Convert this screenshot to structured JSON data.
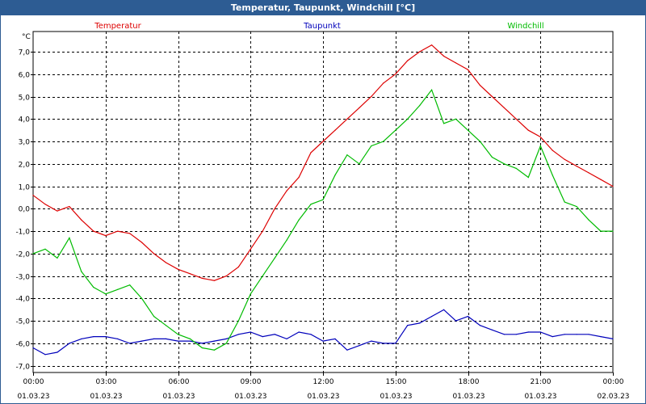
{
  "window": {
    "title": "Temperatur, Taupunkt, Windchill [°C]"
  },
  "chart_data": {
    "type": "line",
    "title": "Temperatur, Taupunkt, Windchill [°C]",
    "ylabel": "°C",
    "xlabel": "",
    "ylim": [
      -7.3,
      7.9
    ],
    "xlim_hours": [
      0,
      24
    ],
    "grid": true,
    "legend": "top",
    "y_ticks": [
      "7,0",
      "6,0",
      "5,0",
      "4,0",
      "3,0",
      "2,0",
      "1,0",
      "0,0",
      "-1,0",
      "-2,0",
      "-3,0",
      "-4,0",
      "-5,0",
      "-6,0",
      "-7,0"
    ],
    "y_tick_values": [
      7,
      6,
      5,
      4,
      3,
      2,
      1,
      0,
      -1,
      -2,
      -3,
      -4,
      -5,
      -6,
      -7
    ],
    "x_ticks": [
      {
        "hour": 0,
        "time": "00:00",
        "date": "01.03.23"
      },
      {
        "hour": 3,
        "time": "03:00",
        "date": "01.03.23"
      },
      {
        "hour": 6,
        "time": "06:00",
        "date": "01.03.23"
      },
      {
        "hour": 9,
        "time": "09:00",
        "date": "01.03.23"
      },
      {
        "hour": 12,
        "time": "12:00",
        "date": "01.03.23"
      },
      {
        "hour": 15,
        "time": "15:00",
        "date": "01.03.23"
      },
      {
        "hour": 18,
        "time": "18:00",
        "date": "01.03.23"
      },
      {
        "hour": 21,
        "time": "21:00",
        "date": "01.03.23"
      },
      {
        "hour": 24,
        "time": "00:00",
        "date": "02.03.23"
      }
    ],
    "series": [
      {
        "name": "Temperatur",
        "color": "#dd0000",
        "x": [
          0,
          0.5,
          1,
          1.5,
          2,
          2.5,
          3,
          3.5,
          4,
          4.5,
          5,
          5.5,
          6,
          6.5,
          7,
          7.5,
          8,
          8.5,
          9,
          9.5,
          10,
          10.5,
          11,
          11.5,
          12,
          12.5,
          13,
          13.5,
          14,
          14.5,
          15,
          15.5,
          16,
          16.5,
          17,
          17.5,
          18,
          18.5,
          19,
          19.5,
          20,
          20.5,
          21,
          21.5,
          22,
          22.5,
          23,
          23.5,
          24
        ],
        "values": [
          0.6,
          0.2,
          -0.1,
          0.1,
          -0.5,
          -1.0,
          -1.2,
          -1.0,
          -1.1,
          -1.5,
          -2.0,
          -2.4,
          -2.7,
          -2.9,
          -3.1,
          -3.2,
          -3.0,
          -2.6,
          -1.8,
          -1.0,
          0.0,
          0.8,
          1.4,
          2.5,
          3.0,
          3.5,
          4.0,
          4.5,
          5.0,
          5.6,
          6.0,
          6.6,
          7.0,
          7.3,
          6.8,
          6.5,
          6.2,
          5.5,
          5.0,
          4.5,
          4.0,
          3.5,
          3.2,
          2.6,
          2.2,
          1.9,
          1.6,
          1.3,
          1.0
        ]
      },
      {
        "name": "Taupunkt",
        "color": "#0000bb",
        "x": [
          0,
          0.5,
          1,
          1.5,
          2,
          2.5,
          3,
          3.5,
          4,
          4.5,
          5,
          5.5,
          6,
          6.5,
          7,
          7.5,
          8,
          8.5,
          9,
          9.5,
          10,
          10.5,
          11,
          11.5,
          12,
          12.5,
          13,
          13.5,
          14,
          14.5,
          15,
          15.5,
          16,
          16.5,
          17,
          17.5,
          18,
          18.5,
          19,
          19.5,
          20,
          20.5,
          21,
          21.5,
          22,
          22.5,
          23,
          23.5,
          24
        ],
        "values": [
          -6.2,
          -6.5,
          -6.4,
          -6.0,
          -5.8,
          -5.7,
          -5.7,
          -5.8,
          -6.0,
          -5.9,
          -5.8,
          -5.8,
          -5.9,
          -5.9,
          -6.0,
          -5.9,
          -5.8,
          -5.6,
          -5.5,
          -5.7,
          -5.6,
          -5.8,
          -5.5,
          -5.6,
          -5.9,
          -5.8,
          -6.3,
          -6.1,
          -5.9,
          -6.0,
          -6.0,
          -5.2,
          -5.1,
          -4.8,
          -4.5,
          -5.0,
          -4.8,
          -5.2,
          -5.4,
          -5.6,
          -5.6,
          -5.5,
          -5.5,
          -5.7,
          -5.6,
          -5.6,
          -5.6,
          -5.7,
          -5.8
        ]
      },
      {
        "name": "Windchill",
        "color": "#00bb00",
        "x": [
          0,
          0.5,
          1,
          1.5,
          2,
          2.5,
          3,
          3.5,
          4,
          4.5,
          5,
          5.5,
          6,
          6.5,
          7,
          7.5,
          8,
          8.5,
          9,
          9.5,
          10,
          10.5,
          11,
          11.5,
          12,
          12.5,
          13,
          13.5,
          14,
          14.5,
          15,
          15.5,
          16,
          16.5,
          17,
          17.5,
          18,
          18.5,
          19,
          19.5,
          20,
          20.5,
          21,
          21.5,
          22,
          22.5,
          23,
          23.5,
          24
        ],
        "values": [
          -2.0,
          -1.8,
          -2.2,
          -1.3,
          -2.8,
          -3.5,
          -3.8,
          -3.6,
          -3.4,
          -4.0,
          -4.8,
          -5.2,
          -5.6,
          -5.8,
          -6.2,
          -6.3,
          -6.0,
          -5.0,
          -3.8,
          -3.0,
          -2.2,
          -1.4,
          -0.5,
          0.2,
          0.4,
          1.5,
          2.4,
          2.0,
          2.8,
          3.0,
          3.5,
          4.0,
          4.6,
          5.3,
          3.8,
          4.0,
          3.5,
          3.0,
          2.3,
          2.0,
          1.8,
          1.4,
          2.8,
          1.5,
          0.3,
          0.1,
          -0.5,
          -1.0,
          -1.0
        ]
      }
    ]
  }
}
